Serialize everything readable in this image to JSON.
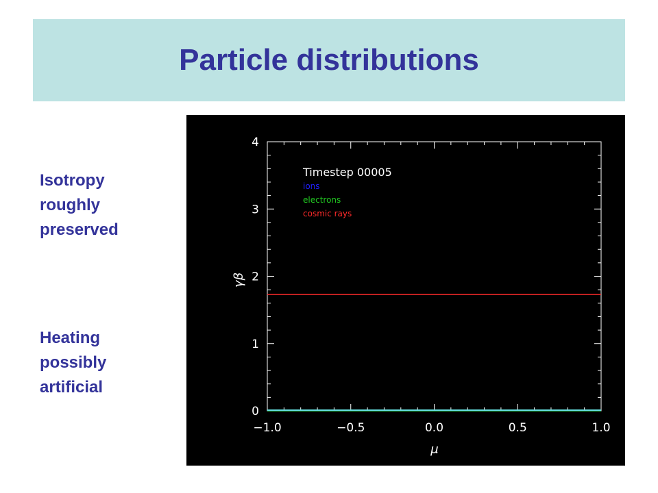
{
  "slide": {
    "title": "Particle distributions",
    "note_1": "Isotropy\nroughly\npreserved",
    "note_2": "Heating\npossibly\nartificial"
  },
  "colors": {
    "title_band": "#bde3e3",
    "title_text": "#33339a",
    "plot_background": "#000000",
    "axes": "#ffffff"
  },
  "chart_data": {
    "type": "line",
    "title": "",
    "annotation": "Timestep 00005",
    "xlabel": "μ",
    "ylabel": "γβ",
    "xlim": [
      -1.0,
      1.0
    ],
    "ylim": [
      0,
      4
    ],
    "xticks": [
      -1.0,
      -0.5,
      0.0,
      0.5,
      1.0
    ],
    "xtick_labels": [
      "−1.0",
      "−0.5",
      "0.0",
      "0.5",
      "1.0"
    ],
    "yticks": [
      0,
      1,
      2,
      3,
      4
    ],
    "ytick_labels": [
      "0",
      "1",
      "2",
      "3",
      "4"
    ],
    "grid": false,
    "legend_position": "top-left",
    "series": [
      {
        "name": "ions",
        "color": "#2020ff",
        "x": [
          -1.0,
          1.0
        ],
        "y": [
          0.0,
          0.0
        ]
      },
      {
        "name": "electrons",
        "color": "#22cc22",
        "x": [
          -1.0,
          1.0
        ],
        "y": [
          0.0,
          0.0
        ]
      },
      {
        "name": "cosmic rays",
        "color": "#ff2a2a",
        "x": [
          -1.0,
          1.0
        ],
        "y": [
          1.73,
          1.73
        ]
      }
    ],
    "baseline": {
      "color": "#66e0e0",
      "y": 0.0
    }
  }
}
